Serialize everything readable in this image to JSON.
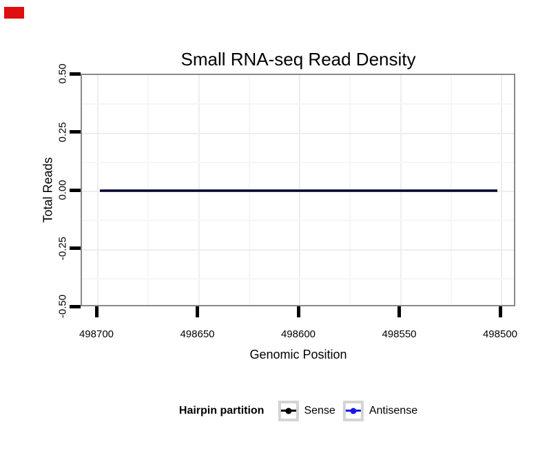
{
  "marker": {
    "color": "#dd0f0f"
  },
  "chart_data": {
    "type": "line",
    "title": "Small RNA-seq Read Density",
    "xlabel": "Genomic Position",
    "ylabel": "Total Reads",
    "x_tick_labels": [
      "498700",
      "498650",
      "498600",
      "498550",
      "498500"
    ],
    "x_axis_reversed": true,
    "xlim": [
      498740,
      498460
    ],
    "x_drawn_range": [
      498699,
      498501
    ],
    "y_tick_labels": [
      "0.50",
      "0.25",
      "0.00",
      "-0.25",
      "-0.50"
    ],
    "ylim": [
      -0.5,
      0.5
    ],
    "grid": "faint major and minor gridlines on white panel",
    "legend_position": "bottom",
    "legend_title": "Hairpin partition",
    "series": [
      {
        "name": "Sense",
        "color": "#000000",
        "constant_value": 0,
        "x_start": 498699,
        "x_end": 498501
      },
      {
        "name": "Antisense",
        "color": "#1a1ae6",
        "constant_value": 0,
        "x_start": 498699,
        "x_end": 498501
      }
    ]
  },
  "legend": {
    "title": "Hairpin partition",
    "items": [
      {
        "label": "Sense",
        "color": "#000000"
      },
      {
        "label": "Antisense",
        "color": "#1a1ae6"
      }
    ]
  }
}
